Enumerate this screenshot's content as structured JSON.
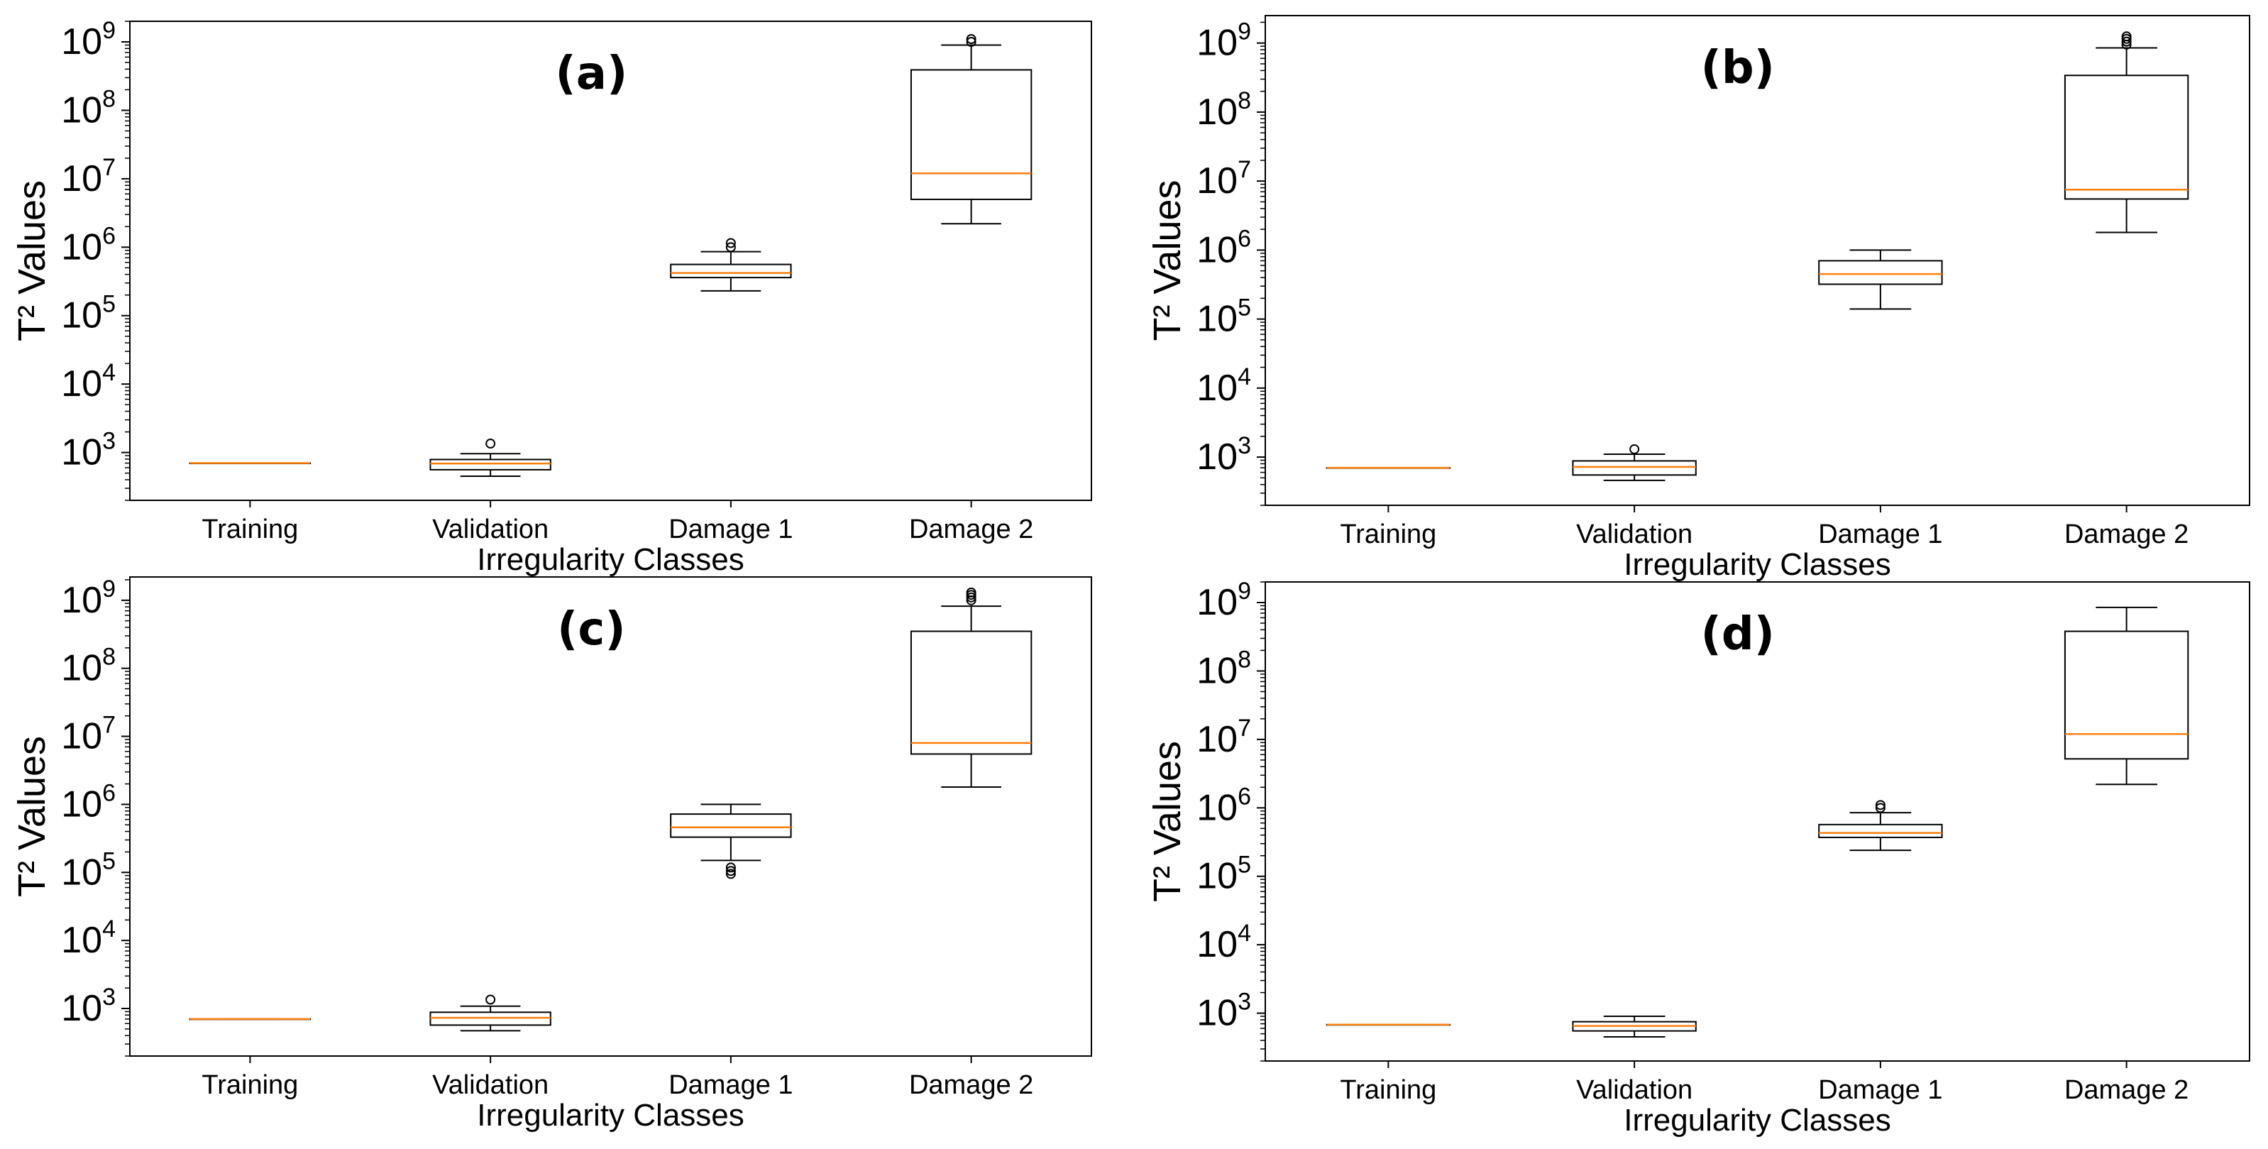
{
  "figure": {
    "type": "box",
    "scale": "log",
    "colors": {
      "box": "#000000",
      "median": "#ff7f0e",
      "background": "#ffffff"
    }
  },
  "chart_data": [
    {
      "type": "box",
      "panel_label": "(a)",
      "ylabel": "T² Values",
      "xlabel": "Irregularity Classes",
      "yscale": "log",
      "ylim": [
        200,
        2000000000
      ],
      "yticks": [
        {
          "base": "10",
          "exp": "3"
        },
        {
          "base": "10",
          "exp": "4"
        },
        {
          "base": "10",
          "exp": "5"
        },
        {
          "base": "10",
          "exp": "6"
        },
        {
          "base": "10",
          "exp": "7"
        },
        {
          "base": "10",
          "exp": "8"
        },
        {
          "base": "10",
          "exp": "9"
        }
      ],
      "categories": [
        "Training",
        "Validation",
        "Damage 1",
        "Damage 2"
      ],
      "boxes": [
        {
          "whislo": 700,
          "q1": 700,
          "med": 700,
          "q3": 700,
          "whishi": 700,
          "fliers": []
        },
        {
          "whislo": 450,
          "q1": 560,
          "med": 690,
          "q3": 790,
          "whishi": 960,
          "fliers": [
            1350
          ]
        },
        {
          "whislo": 230000,
          "q1": 360000,
          "med": 420000,
          "q3": 560000,
          "whishi": 860000,
          "fliers": [
            1000000,
            1150000
          ]
        },
        {
          "whislo": 2200000,
          "q1": 5000000,
          "med": 12000000,
          "q3": 390000000,
          "whishi": 900000000,
          "fliers": [
            1000000000,
            1100000000
          ]
        }
      ]
    },
    {
      "type": "box",
      "panel_label": "(b)",
      "ylabel": "T² Values",
      "xlabel": "Irregularity Classes",
      "yscale": "log",
      "ylim": [
        200,
        2500000000
      ],
      "yticks": [
        {
          "base": "10",
          "exp": "3"
        },
        {
          "base": "10",
          "exp": "4"
        },
        {
          "base": "10",
          "exp": "5"
        },
        {
          "base": "10",
          "exp": "6"
        },
        {
          "base": "10",
          "exp": "7"
        },
        {
          "base": "10",
          "exp": "8"
        },
        {
          "base": "10",
          "exp": "9"
        }
      ],
      "categories": [
        "Training",
        "Validation",
        "Damage 1",
        "Damage 2"
      ],
      "boxes": [
        {
          "whislo": 700,
          "q1": 700,
          "med": 700,
          "q3": 700,
          "whishi": 700,
          "fliers": []
        },
        {
          "whislo": 460,
          "q1": 550,
          "med": 720,
          "q3": 880,
          "whishi": 1100,
          "fliers": [
            1300
          ]
        },
        {
          "whislo": 140000,
          "q1": 320000,
          "med": 450000,
          "q3": 700000,
          "whishi": 1000000,
          "fliers": []
        },
        {
          "whislo": 1800000,
          "q1": 5500000,
          "med": 7500000,
          "q3": 340000000,
          "whishi": 850000000,
          "fliers": [
            950000000,
            1050000000,
            1150000000,
            1250000000
          ]
        }
      ]
    },
    {
      "type": "box",
      "panel_label": "(c)",
      "ylabel": "T² Values",
      "xlabel": "Irregularity Classes",
      "yscale": "log",
      "ylim": [
        200,
        2200000000
      ],
      "yticks": [
        {
          "base": "10",
          "exp": "3"
        },
        {
          "base": "10",
          "exp": "4"
        },
        {
          "base": "10",
          "exp": "5"
        },
        {
          "base": "10",
          "exp": "6"
        },
        {
          "base": "10",
          "exp": "7"
        },
        {
          "base": "10",
          "exp": "8"
        },
        {
          "base": "10",
          "exp": "9"
        }
      ],
      "categories": [
        "Training",
        "Validation",
        "Damage 1",
        "Damage 2"
      ],
      "boxes": [
        {
          "whislo": 700,
          "q1": 700,
          "med": 700,
          "q3": 700,
          "whishi": 700,
          "fliers": []
        },
        {
          "whislo": 470,
          "q1": 570,
          "med": 730,
          "q3": 880,
          "whishi": 1080,
          "fliers": [
            1350
          ]
        },
        {
          "whislo": 150000,
          "q1": 330000,
          "med": 460000,
          "q3": 720000,
          "whishi": 1000000,
          "fliers": [
            95000,
            105000,
            118000
          ]
        },
        {
          "whislo": 1800000,
          "q1": 5500000,
          "med": 8000000,
          "q3": 350000000,
          "whishi": 820000000,
          "fliers": [
            1000000000,
            1100000000,
            1200000000,
            1300000000
          ]
        }
      ]
    },
    {
      "type": "box",
      "panel_label": "(d)",
      "ylabel": "T² Values",
      "xlabel": "Irregularity Classes",
      "yscale": "log",
      "ylim": [
        200,
        2000000000
      ],
      "yticks": [
        {
          "base": "10",
          "exp": "3"
        },
        {
          "base": "10",
          "exp": "4"
        },
        {
          "base": "10",
          "exp": "5"
        },
        {
          "base": "10",
          "exp": "6"
        },
        {
          "base": "10",
          "exp": "7"
        },
        {
          "base": "10",
          "exp": "8"
        },
        {
          "base": "10",
          "exp": "9"
        }
      ],
      "categories": [
        "Training",
        "Validation",
        "Damage 1",
        "Damage 2"
      ],
      "boxes": [
        {
          "whislo": 680,
          "q1": 680,
          "med": 680,
          "q3": 680,
          "whishi": 680,
          "fliers": []
        },
        {
          "whislo": 450,
          "q1": 550,
          "med": 650,
          "q3": 750,
          "whishi": 900,
          "fliers": []
        },
        {
          "whislo": 240000,
          "q1": 370000,
          "med": 430000,
          "q3": 570000,
          "whishi": 850000,
          "fliers": [
            1000000,
            1100000
          ]
        },
        {
          "whislo": 2200000,
          "q1": 5200000,
          "med": 12000000,
          "q3": 380000000,
          "whishi": 850000000,
          "fliers": []
        }
      ]
    }
  ]
}
